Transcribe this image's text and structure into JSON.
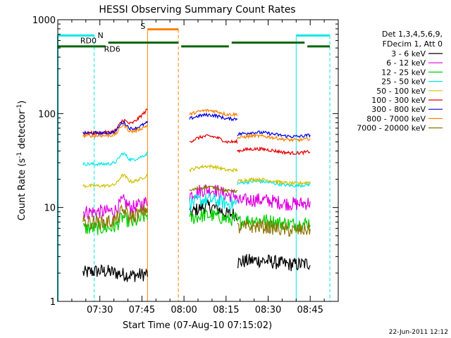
{
  "chart_data": {
    "type": "line",
    "title": "HESSI Observing Summary Count Rates",
    "xlabel": "Start Time (07-Aug-10 07:15:02)",
    "ylabel_main": "Count Rate (s",
    "ylabel_sup1": "-1",
    "ylabel_mid": " detector",
    "ylabel_sup2": "-1",
    "ylabel_end": ")",
    "y_scale": "log",
    "ylim": [
      1,
      1000
    ],
    "y_ticks": [
      {
        "value": 1,
        "label": "1"
      },
      {
        "value": 10,
        "label": "10"
      },
      {
        "value": 100,
        "label": "100"
      },
      {
        "value": 1000,
        "label": "1000"
      }
    ],
    "xlim_minutes": [
      0,
      100
    ],
    "x_ticks": [
      {
        "label": "07:30"
      },
      {
        "label": "07:45"
      },
      {
        "label": "08:00"
      },
      {
        "label": "08:15"
      },
      {
        "label": "08:30"
      },
      {
        "label": "08:45"
      }
    ],
    "legend": {
      "header": [
        "Det 1,3,4,5,6,9,",
        "FDecim 1, Att 0"
      ],
      "placement": "right"
    },
    "series": [
      {
        "name": "3 - 6 keV",
        "color": "#000000",
        "segments": [
          {
            "start": 9,
            "end": 32,
            "base": 2.0,
            "shape": "flat",
            "peak": 1.0
          },
          {
            "start": 47,
            "end": 64,
            "base": 8.5,
            "shape": "hump",
            "peak": 1.2
          },
          {
            "start": 64,
            "end": 90,
            "base": 2.6,
            "shape": "flat",
            "peak": 1.0
          }
        ]
      },
      {
        "name": "6 - 12 keV",
        "color": "#e000e0",
        "segments": [
          {
            "start": 9,
            "end": 32,
            "base": 9.0,
            "shape": "rise",
            "peak": 1.3
          },
          {
            "start": 47,
            "end": 64,
            "base": 13.5,
            "shape": "hump",
            "peak": 1.15
          },
          {
            "start": 64,
            "end": 90,
            "base": 11.5,
            "shape": "flat",
            "peak": 1.0
          }
        ]
      },
      {
        "name": "12 - 25 keV",
        "color": "#00d000",
        "segments": [
          {
            "start": 9,
            "end": 32,
            "base": 6.0,
            "shape": "rise",
            "peak": 1.4
          },
          {
            "start": 47,
            "end": 64,
            "base": 7.5,
            "shape": "hump",
            "peak": 1.1
          },
          {
            "start": 64,
            "end": 90,
            "base": 7.0,
            "shape": "flat",
            "peak": 1.0
          }
        ]
      },
      {
        "name": "25 - 50 keV",
        "color": "#00e8e8",
        "segments": [
          {
            "start": 9,
            "end": 32,
            "base": 29,
            "shape": "rise",
            "peak": 1.3
          },
          {
            "start": 47,
            "end": 64,
            "base": 11,
            "shape": "hump",
            "peak": 1.1
          },
          {
            "start": 64,
            "end": 90,
            "base": 18,
            "shape": "flat",
            "peak": 1.0
          }
        ]
      },
      {
        "name": "50 - 100 keV",
        "color": "#d0c000",
        "segments": [
          {
            "start": 9,
            "end": 32,
            "base": 17,
            "shape": "rise",
            "peak": 1.3
          },
          {
            "start": 47,
            "end": 64,
            "base": 25,
            "shape": "hump",
            "peak": 1.1
          },
          {
            "start": 64,
            "end": 90,
            "base": 19,
            "shape": "flat",
            "peak": 1.0
          }
        ]
      },
      {
        "name": "100 - 300 keV",
        "color": "#e00000",
        "segments": [
          {
            "start": 9,
            "end": 32,
            "base": 62,
            "shape": "rise",
            "peak": 1.8
          },
          {
            "start": 47,
            "end": 64,
            "base": 50,
            "shape": "hump",
            "peak": 1.15
          },
          {
            "start": 64,
            "end": 90,
            "base": 40,
            "shape": "flat",
            "peak": 1.0
          }
        ]
      },
      {
        "name": "300 - 800 keV",
        "color": "#0000e0",
        "segments": [
          {
            "start": 9,
            "end": 32,
            "base": 62,
            "shape": "rise",
            "peak": 1.3
          },
          {
            "start": 47,
            "end": 64,
            "base": 88,
            "shape": "hump",
            "peak": 1.1
          },
          {
            "start": 64,
            "end": 90,
            "base": 60,
            "shape": "flat",
            "peak": 1.0
          }
        ]
      },
      {
        "name": "800 - 7000 keV",
        "color": "#ff8000",
        "segments": [
          {
            "start": 9,
            "end": 32,
            "base": 58,
            "shape": "rise",
            "peak": 1.3
          },
          {
            "start": 47,
            "end": 64,
            "base": 98,
            "shape": "hump",
            "peak": 1.1
          },
          {
            "start": 64,
            "end": 90,
            "base": 55,
            "shape": "flat",
            "peak": 1.0
          }
        ]
      },
      {
        "name": "7000 - 20000 keV",
        "color": "#8b7500",
        "segments": [
          {
            "start": 9,
            "end": 32,
            "base": 7.0,
            "shape": "rise",
            "peak": 1.4
          },
          {
            "start": 47,
            "end": 64,
            "base": 15,
            "shape": "hump",
            "peak": 1.1
          },
          {
            "start": 64,
            "end": 90,
            "base": 6.0,
            "shape": "flat",
            "peak": 1.0
          }
        ]
      }
    ],
    "annotations": {
      "N": {
        "label": "N",
        "color": "#00e8e8"
      },
      "S": {
        "label": "S",
        "color": "#ff8000"
      },
      "RD0": {
        "label": "RD0",
        "color": "#006600"
      },
      "RD6": {
        "label": "RD6",
        "color": "#006600"
      }
    }
  },
  "footer": {
    "timestamp": "22-Jun-2011 12:12"
  }
}
